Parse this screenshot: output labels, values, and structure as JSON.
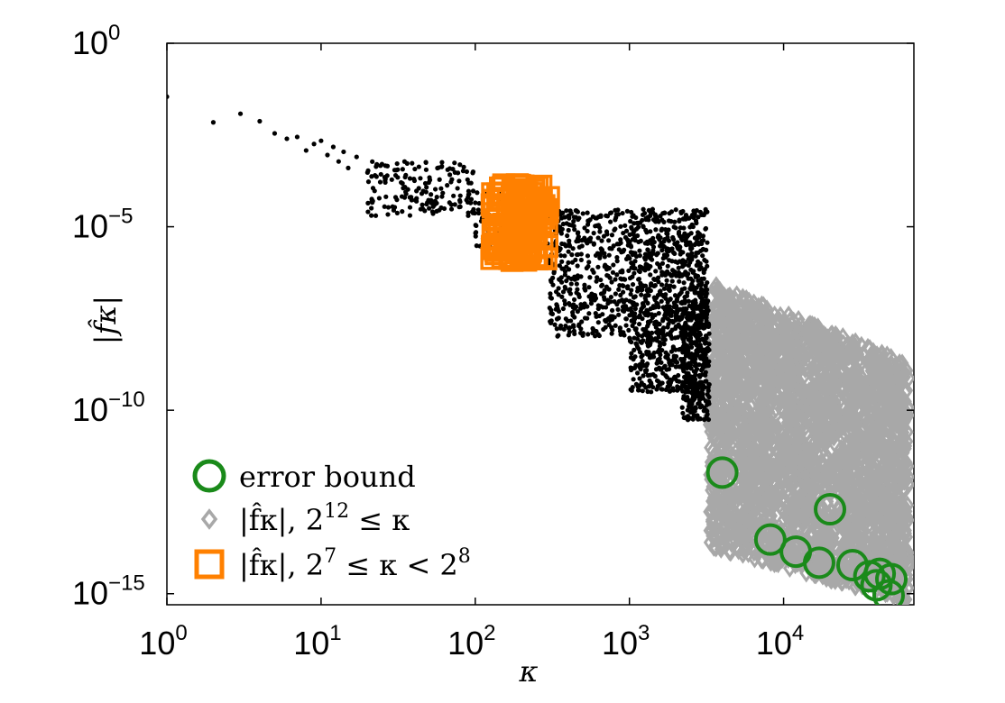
{
  "chart_data": {
    "type": "scatter",
    "title": "",
    "xlabel": "κ",
    "ylabel": "|f̂κ|",
    "x_scale": "log",
    "y_scale": "log",
    "xlim": [
      1,
      70000
    ],
    "ylim": [
      5e-16,
      1
    ],
    "x_ticks": [
      1,
      10,
      100,
      1000,
      10000
    ],
    "x_tick_labels": [
      {
        "base": "10",
        "exp": "0"
      },
      {
        "base": "10",
        "exp": "1"
      },
      {
        "base": "10",
        "exp": "2"
      },
      {
        "base": "10",
        "exp": "3"
      },
      {
        "base": "10",
        "exp": "4"
      }
    ],
    "y_ticks": [
      1e-15,
      1e-10,
      1e-05,
      1
    ],
    "y_tick_labels": [
      {
        "base": "10",
        "exp": "−15"
      },
      {
        "base": "10",
        "exp": "−10"
      },
      {
        "base": "10",
        "exp": "−5"
      },
      {
        "base": "10",
        "exp": "0"
      }
    ],
    "grid": false,
    "legend_position": "bottom-left",
    "legend": [
      {
        "label": "error bound",
        "marker": "circle",
        "color": "#1a8a1a"
      },
      {
        "label": "|f̂κ|,  2^12 ≤ κ",
        "marker": "diamond",
        "color": "#a8a8a8"
      },
      {
        "label": "|f̂κ|,  2^7 ≤ κ < 2^8",
        "marker": "square",
        "color": "#ff8000"
      }
    ],
    "series": [
      {
        "role": "all coefficients",
        "marker": "dot",
        "color": "#000000",
        "points": [
          [
            1,
            0.035
          ],
          [
            2,
            0.007
          ],
          [
            3,
            0.012
          ],
          [
            4,
            0.0075
          ],
          [
            5,
            0.0035
          ],
          [
            6,
            0.0025
          ],
          [
            7,
            0.0028
          ],
          [
            8,
            0.0012
          ],
          [
            9,
            0.0018
          ],
          [
            10,
            0.0022
          ],
          [
            11,
            0.0009
          ],
          [
            12,
            0.0015
          ],
          [
            13,
            0.0006
          ],
          [
            14,
            0.0011
          ],
          [
            15,
            0.0004
          ],
          [
            17,
            0.0008
          ],
          [
            20,
            0.0003
          ],
          [
            23,
            0.0005
          ],
          [
            26,
            0.00018
          ],
          [
            30,
            0.00035
          ],
          [
            35,
            0.00012
          ],
          [
            40,
            0.0002
          ],
          [
            45,
            8e-05
          ],
          [
            50,
            0.00016
          ],
          [
            55,
            5e-05
          ],
          [
            60,
            0.00011
          ],
          [
            70,
            4e-05
          ],
          [
            80,
            7e-05
          ],
          [
            90,
            2e-05
          ],
          [
            100,
            4.5e-05
          ]
        ],
        "clouds": [
          {
            "x_range": [
              20,
              100
            ],
            "y_range": [
              2e-05,
              0.0006
            ],
            "count": 160
          },
          {
            "x_range": [
              100,
              300
            ],
            "y_range": [
              2e-06,
              0.0001
            ],
            "count": 120
          },
          {
            "x_range": [
              300,
              1000
            ],
            "y_range": [
              1e-08,
              3e-05
            ],
            "count": 420
          },
          {
            "x_range": [
              1000,
              3200
            ],
            "y_range": [
              3e-10,
              3e-05
            ],
            "count": 900
          },
          {
            "x_range": [
              2200,
              3300
            ],
            "y_range": [
              5e-11,
              1e-07
            ],
            "count": 300
          }
        ]
      },
      {
        "role": "2^7 ≤ κ < 2^8",
        "marker": "square",
        "color": "#ff8000",
        "x_range": [
          128,
          300
        ],
        "y_range": [
          1.2e-06,
          0.00015
        ],
        "count": 130
      },
      {
        "role": "2^12 ≤ κ",
        "marker": "diamond",
        "color": "#a8a8a8",
        "x_range": [
          3300,
          65000
        ],
        "y_range": [
          6e-16,
          3e-07
        ],
        "count": 2600
      },
      {
        "role": "error bound",
        "marker": "circle",
        "color": "#1a8a1a",
        "points": [
          [
            4000,
            2e-12
          ],
          [
            8200,
            3e-14
          ],
          [
            20000,
            2e-13
          ],
          [
            12000,
            1.4e-14
          ],
          [
            17000,
            7e-15
          ],
          [
            28000,
            6e-15
          ],
          [
            36000,
            3e-15
          ],
          [
            42000,
            3.5e-15
          ],
          [
            50000,
            2.5e-15
          ],
          [
            40000,
            1.7e-15
          ],
          [
            48000,
            9e-16
          ]
        ]
      }
    ]
  }
}
